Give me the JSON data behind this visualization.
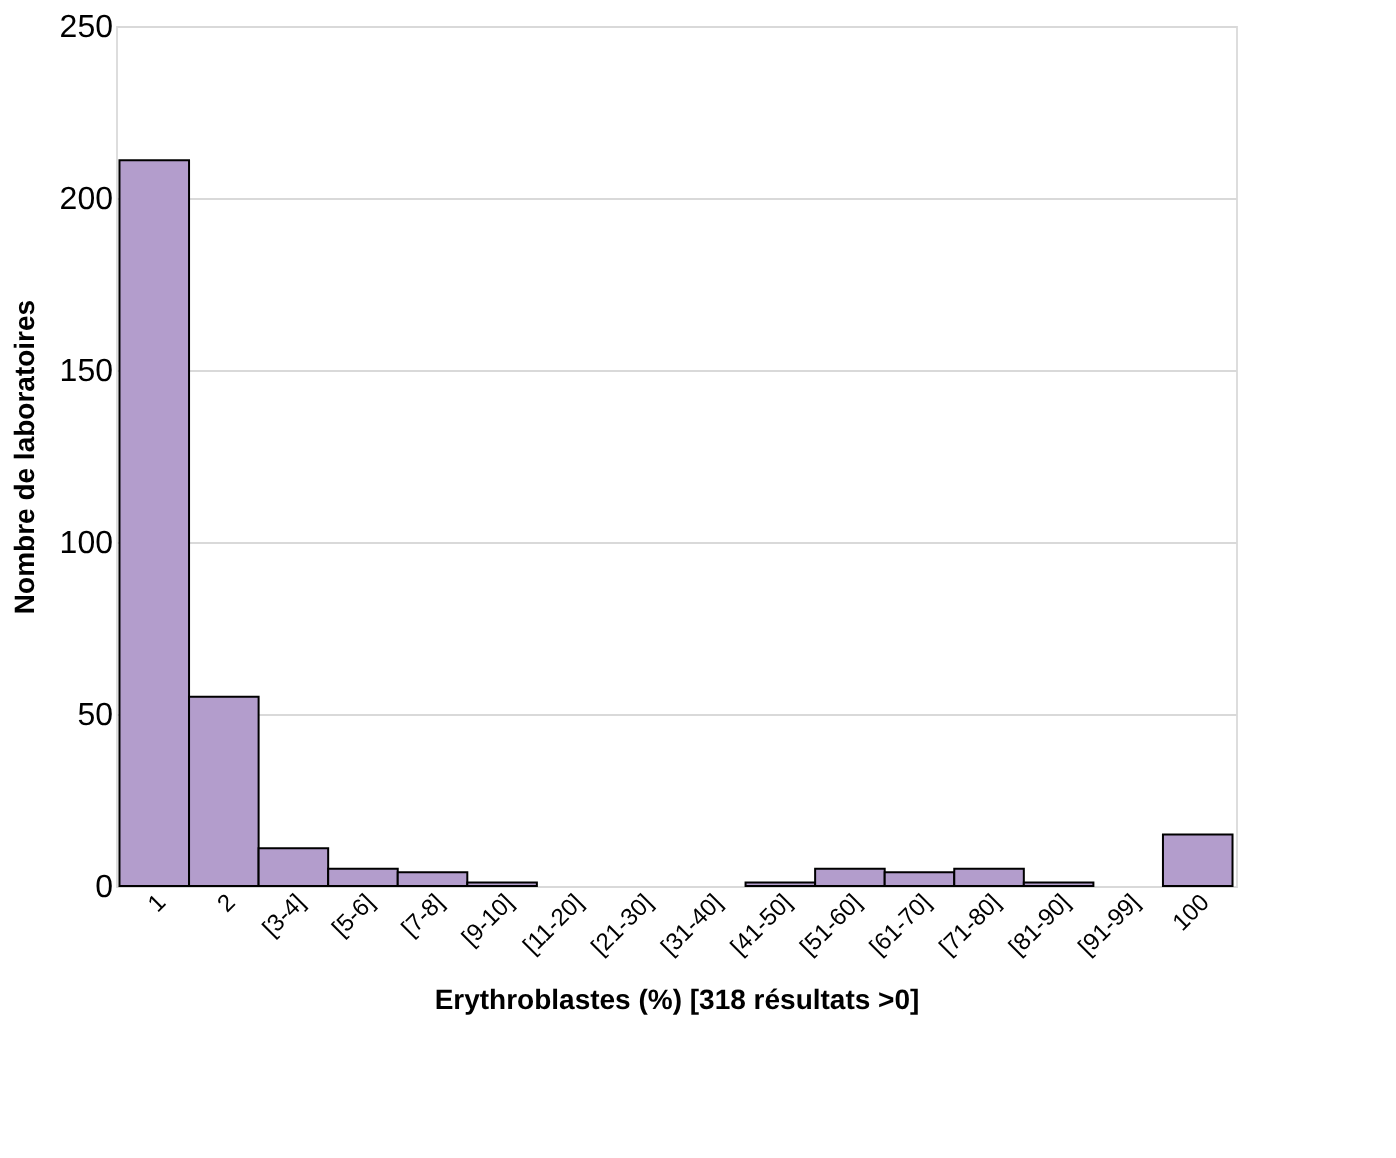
{
  "chart_data": {
    "type": "bar",
    "xlabel": "Erythroblastes (%) [318 résultats >0]",
    "ylabel": "Nombre de laboratoires",
    "categories": [
      "1",
      "2",
      "[3-4]",
      "[5-6]",
      "[7-8]",
      "[9-10]",
      "[11-20]",
      "[21-30]",
      "[31-40]",
      "[41-50]",
      "[51-60]",
      "[61-70]",
      "[71-80]",
      "[81-90]",
      "[91-99]",
      "100"
    ],
    "values": [
      211,
      55,
      11,
      5,
      4,
      1,
      0,
      0,
      0,
      1,
      5,
      4,
      5,
      1,
      0,
      15
    ],
    "color": "#b39dcc",
    "ylim": [
      0,
      250
    ],
    "yticks": [
      0,
      50,
      100,
      150,
      200,
      250
    ],
    "grid": "y"
  }
}
